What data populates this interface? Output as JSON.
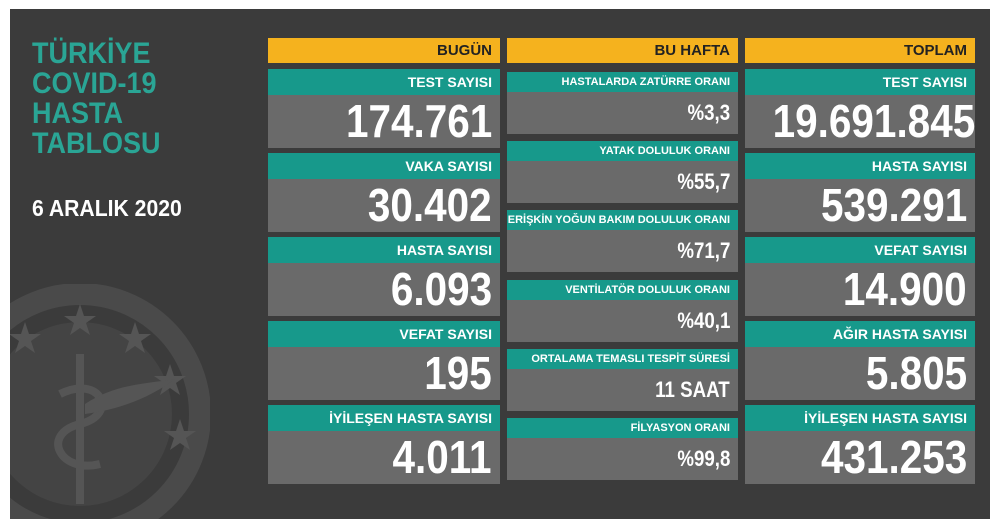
{
  "title": [
    "TÜRKİYE",
    "COVID-19",
    "HASTA",
    "TABLOSU"
  ],
  "date": "6 ARALIK 2020",
  "columns": [
    {
      "header": "BUGÜN",
      "items": [
        {
          "label": "TEST SAYISI",
          "value": "174.761"
        },
        {
          "label": "VAKA SAYISI",
          "value": "30.402"
        },
        {
          "label": "HASTA SAYISI",
          "value": "6.093"
        },
        {
          "label": "VEFAT SAYISI",
          "value": "195"
        },
        {
          "label": "İYİLEŞEN HASTA SAYISI",
          "value": "4.011"
        }
      ]
    },
    {
      "header": "BU HAFTA",
      "items": [
        {
          "label": "HASTALARDA ZATÜRRE ORANI",
          "value": "%3,3"
        },
        {
          "label": "YATAK DOLULUK ORANI",
          "value": "%55,7"
        },
        {
          "label": "ERİŞKİN YOĞUN BAKIM DOLULUK ORANI",
          "value": "%71,7"
        },
        {
          "label": "VENTİLATÖR DOLULUK ORANI",
          "value": "%40,1"
        },
        {
          "label": "ORTALAMA TEMASLI TESPİT SÜRESİ",
          "value": "11 SAAT"
        },
        {
          "label": "FİLYASYON ORANI",
          "value": "%99,8"
        }
      ]
    },
    {
      "header": "TOPLAM",
      "items": [
        {
          "label": "TEST SAYISI",
          "value": "19.691.845"
        },
        {
          "label": "HASTA SAYISI",
          "value": "539.291"
        },
        {
          "label": "VEFAT SAYISI",
          "value": "14.900"
        },
        {
          "label": "AĞIR HASTA SAYISI",
          "value": "5.805"
        },
        {
          "label": "İYİLEŞEN HASTA SAYISI",
          "value": "431.253"
        }
      ]
    }
  ]
}
